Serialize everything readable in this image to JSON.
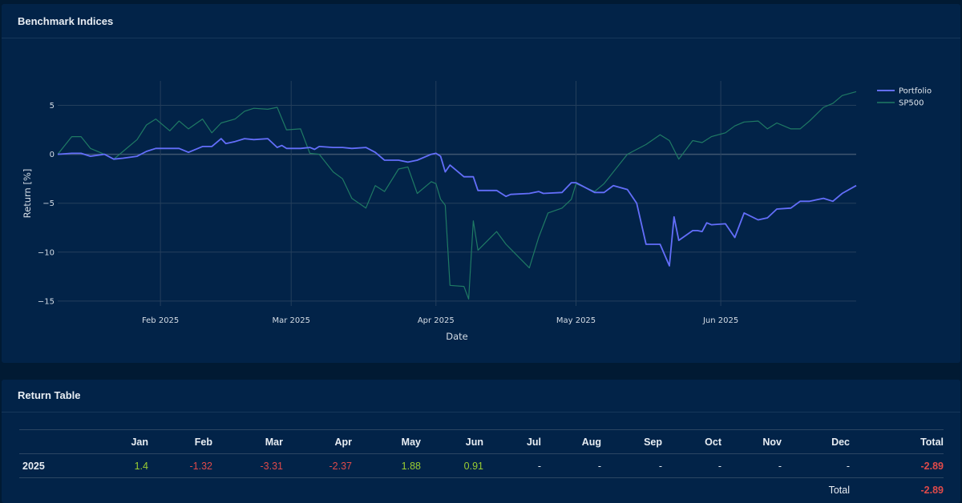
{
  "chart_card": {
    "title": "Benchmark Indices"
  },
  "table_card": {
    "title": "Return Table"
  },
  "colors": {
    "portfolio": "#636efa",
    "sp500": "#1f7a64",
    "positive": "#9acd32",
    "negative": "#e04a4a"
  },
  "chart_data": {
    "type": "line",
    "xlabel": "Date",
    "ylabel": "Return [%]",
    "x_range": [
      "2025-01-10",
      "2025-06-30"
    ],
    "ylim": [
      -15.5,
      7.5
    ],
    "y_ticks": [
      5,
      0,
      -5,
      -10,
      -15
    ],
    "y_tick_labels": [
      "5",
      "0",
      "−5",
      "−10",
      "−15"
    ],
    "x_ticks": [
      {
        "date": "2025-02-01",
        "label": "Feb 2025"
      },
      {
        "date": "2025-03-01",
        "label": "Mar 2025"
      },
      {
        "date": "2025-04-01",
        "label": "Apr 2025"
      },
      {
        "date": "2025-05-01",
        "label": "May 2025"
      },
      {
        "date": "2025-06-01",
        "label": "Jun 2025"
      }
    ],
    "legend": [
      "Portfolio",
      "SP500"
    ],
    "legend_position": "top-right",
    "grid": true,
    "series": [
      {
        "name": "Portfolio",
        "points": [
          [
            "2025-01-10",
            0.0
          ],
          [
            "2025-01-13",
            0.1
          ],
          [
            "2025-01-15",
            0.1
          ],
          [
            "2025-01-17",
            -0.2
          ],
          [
            "2025-01-20",
            0.0
          ],
          [
            "2025-01-22",
            -0.5
          ],
          [
            "2025-01-24",
            -0.4
          ],
          [
            "2025-01-27",
            -0.2
          ],
          [
            "2025-01-29",
            0.3
          ],
          [
            "2025-01-31",
            0.6
          ],
          [
            "2025-02-03",
            0.6
          ],
          [
            "2025-02-05",
            0.6
          ],
          [
            "2025-02-07",
            0.2
          ],
          [
            "2025-02-10",
            0.8
          ],
          [
            "2025-02-12",
            0.8
          ],
          [
            "2025-02-14",
            1.6
          ],
          [
            "2025-02-15",
            1.1
          ],
          [
            "2025-02-17",
            1.3
          ],
          [
            "2025-02-19",
            1.6
          ],
          [
            "2025-02-21",
            1.5
          ],
          [
            "2025-02-24",
            1.6
          ],
          [
            "2025-02-26",
            0.7
          ],
          [
            "2025-02-27",
            0.9
          ],
          [
            "2025-02-28",
            0.6
          ],
          [
            "2025-03-03",
            0.6
          ],
          [
            "2025-03-05",
            0.7
          ],
          [
            "2025-03-06",
            0.5
          ],
          [
            "2025-03-07",
            0.8
          ],
          [
            "2025-03-10",
            0.7
          ],
          [
            "2025-03-12",
            0.7
          ],
          [
            "2025-03-14",
            0.6
          ],
          [
            "2025-03-17",
            0.7
          ],
          [
            "2025-03-19",
            0.2
          ],
          [
            "2025-03-21",
            -0.6
          ],
          [
            "2025-03-24",
            -0.6
          ],
          [
            "2025-03-26",
            -0.8
          ],
          [
            "2025-03-28",
            -0.6
          ],
          [
            "2025-03-31",
            0.0
          ],
          [
            "2025-04-01",
            0.1
          ],
          [
            "2025-04-02",
            -0.2
          ],
          [
            "2025-04-03",
            -1.8
          ],
          [
            "2025-04-04",
            -1.1
          ],
          [
            "2025-04-07",
            -2.3
          ],
          [
            "2025-04-09",
            -2.3
          ],
          [
            "2025-04-10",
            -3.7
          ],
          [
            "2025-04-14",
            -3.7
          ],
          [
            "2025-04-16",
            -4.3
          ],
          [
            "2025-04-17",
            -4.1
          ],
          [
            "2025-04-21",
            -4.0
          ],
          [
            "2025-04-23",
            -3.8
          ],
          [
            "2025-04-24",
            -4.0
          ],
          [
            "2025-04-28",
            -3.9
          ],
          [
            "2025-04-30",
            -2.9
          ],
          [
            "2025-05-01",
            -2.9
          ],
          [
            "2025-05-05",
            -3.9
          ],
          [
            "2025-05-07",
            -3.9
          ],
          [
            "2025-05-09",
            -3.2
          ],
          [
            "2025-05-12",
            -3.6
          ],
          [
            "2025-05-14",
            -5.0
          ],
          [
            "2025-05-16",
            -9.2
          ],
          [
            "2025-05-19",
            -9.2
          ],
          [
            "2025-05-21",
            -11.4
          ],
          [
            "2025-05-22",
            -6.4
          ],
          [
            "2025-05-23",
            -8.8
          ],
          [
            "2025-05-26",
            -7.8
          ],
          [
            "2025-05-27",
            -7.8
          ],
          [
            "2025-05-28",
            -7.9
          ],
          [
            "2025-05-29",
            -7.0
          ],
          [
            "2025-05-30",
            -7.2
          ],
          [
            "2025-06-02",
            -7.1
          ],
          [
            "2025-06-04",
            -8.5
          ],
          [
            "2025-06-06",
            -6.0
          ],
          [
            "2025-06-09",
            -6.7
          ],
          [
            "2025-06-11",
            -6.5
          ],
          [
            "2025-06-13",
            -5.6
          ],
          [
            "2025-06-16",
            -5.5
          ],
          [
            "2025-06-18",
            -4.8
          ],
          [
            "2025-06-20",
            -4.8
          ],
          [
            "2025-06-23",
            -4.5
          ],
          [
            "2025-06-25",
            -4.8
          ],
          [
            "2025-06-27",
            -4.0
          ],
          [
            "2025-06-30",
            -3.2
          ]
        ]
      },
      {
        "name": "SP500",
        "points": [
          [
            "2025-01-10",
            0.0
          ],
          [
            "2025-01-13",
            1.8
          ],
          [
            "2025-01-15",
            1.8
          ],
          [
            "2025-01-17",
            0.6
          ],
          [
            "2025-01-20",
            0.0
          ],
          [
            "2025-01-22",
            -0.5
          ],
          [
            "2025-01-24",
            0.3
          ],
          [
            "2025-01-27",
            1.5
          ],
          [
            "2025-01-29",
            3.0
          ],
          [
            "2025-01-31",
            3.6
          ],
          [
            "2025-02-03",
            2.4
          ],
          [
            "2025-02-05",
            3.4
          ],
          [
            "2025-02-07",
            2.6
          ],
          [
            "2025-02-10",
            3.6
          ],
          [
            "2025-02-12",
            2.2
          ],
          [
            "2025-02-14",
            3.2
          ],
          [
            "2025-02-17",
            3.6
          ],
          [
            "2025-02-19",
            4.4
          ],
          [
            "2025-02-21",
            4.7
          ],
          [
            "2025-02-24",
            4.6
          ],
          [
            "2025-02-26",
            4.8
          ],
          [
            "2025-02-28",
            2.5
          ],
          [
            "2025-03-03",
            2.6
          ],
          [
            "2025-03-05",
            0.1
          ],
          [
            "2025-03-07",
            0.0
          ],
          [
            "2025-03-10",
            -1.8
          ],
          [
            "2025-03-12",
            -2.5
          ],
          [
            "2025-03-14",
            -4.5
          ],
          [
            "2025-03-17",
            -5.5
          ],
          [
            "2025-03-19",
            -3.2
          ],
          [
            "2025-03-21",
            -3.8
          ],
          [
            "2025-03-24",
            -1.5
          ],
          [
            "2025-03-26",
            -1.3
          ],
          [
            "2025-03-28",
            -4.0
          ],
          [
            "2025-03-31",
            -2.8
          ],
          [
            "2025-04-01",
            -3.0
          ],
          [
            "2025-04-02",
            -4.6
          ],
          [
            "2025-04-03",
            -5.2
          ],
          [
            "2025-04-04",
            -13.4
          ],
          [
            "2025-04-07",
            -13.5
          ],
          [
            "2025-04-08",
            -14.8
          ],
          [
            "2025-04-09",
            -6.8
          ],
          [
            "2025-04-10",
            -9.8
          ],
          [
            "2025-04-14",
            -7.9
          ],
          [
            "2025-04-16",
            -9.2
          ],
          [
            "2025-04-21",
            -11.6
          ],
          [
            "2025-04-23",
            -8.5
          ],
          [
            "2025-04-25",
            -6.0
          ],
          [
            "2025-04-28",
            -5.5
          ],
          [
            "2025-04-30",
            -4.6
          ],
          [
            "2025-05-01",
            -3.0
          ],
          [
            "2025-05-05",
            -3.8
          ],
          [
            "2025-05-07",
            -3.0
          ],
          [
            "2025-05-12",
            0.0
          ],
          [
            "2025-05-14",
            0.5
          ],
          [
            "2025-05-16",
            1.0
          ],
          [
            "2025-05-19",
            2.0
          ],
          [
            "2025-05-21",
            1.4
          ],
          [
            "2025-05-23",
            -0.5
          ],
          [
            "2025-05-26",
            1.4
          ],
          [
            "2025-05-28",
            1.2
          ],
          [
            "2025-05-30",
            1.8
          ],
          [
            "2025-06-02",
            2.2
          ],
          [
            "2025-06-04",
            2.9
          ],
          [
            "2025-06-06",
            3.3
          ],
          [
            "2025-06-09",
            3.4
          ],
          [
            "2025-06-11",
            2.6
          ],
          [
            "2025-06-13",
            3.2
          ],
          [
            "2025-06-16",
            2.6
          ],
          [
            "2025-06-18",
            2.6
          ],
          [
            "2025-06-20",
            3.4
          ],
          [
            "2025-06-23",
            4.8
          ],
          [
            "2025-06-25",
            5.2
          ],
          [
            "2025-06-27",
            6.0
          ],
          [
            "2025-06-30",
            6.4
          ]
        ]
      }
    ]
  },
  "return_table": {
    "headers": [
      "",
      "Jan",
      "Feb",
      "Mar",
      "Apr",
      "May",
      "Jun",
      "Jul",
      "Aug",
      "Sep",
      "Oct",
      "Nov",
      "Dec",
      "Total"
    ],
    "rows": [
      {
        "label": "2025",
        "cells": [
          {
            "text": "1.4",
            "tone": "pos"
          },
          {
            "text": "-1.32",
            "tone": "neg"
          },
          {
            "text": "-3.31",
            "tone": "neg"
          },
          {
            "text": "-2.37",
            "tone": "neg"
          },
          {
            "text": "1.88",
            "tone": "pos"
          },
          {
            "text": "0.91",
            "tone": "pos"
          },
          {
            "text": "-",
            "tone": "neu"
          },
          {
            "text": "-",
            "tone": "neu"
          },
          {
            "text": "-",
            "tone": "neu"
          },
          {
            "text": "-",
            "tone": "neu"
          },
          {
            "text": "-",
            "tone": "neu"
          },
          {
            "text": "-",
            "tone": "neu"
          },
          {
            "text": "-2.89",
            "tone": "tot"
          }
        ]
      }
    ],
    "total_label": "Total",
    "total_value": "-2.89"
  }
}
